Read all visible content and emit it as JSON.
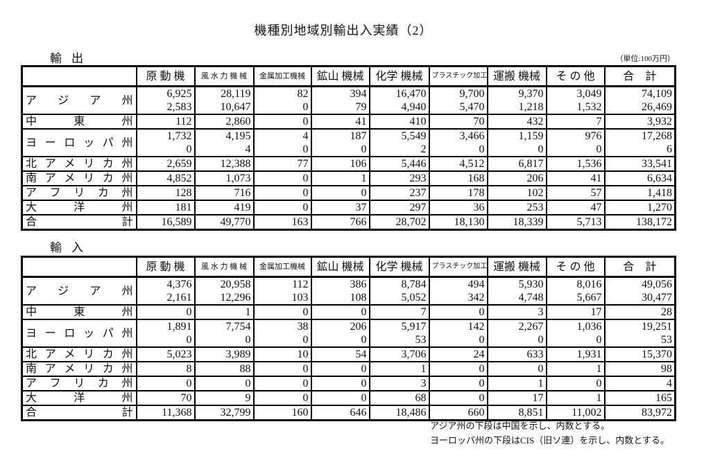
{
  "title": "機種別地域別輸出入実績（2）",
  "unit": "（単位:100万円）",
  "columns": [
    "原 動 機",
    "風 水 力 機 械",
    "金属加工機械",
    "鉱山 機械",
    "化学 機械",
    "プラスチック加工機械",
    "運搬 機械",
    "そ の 他",
    "合　計"
  ],
  "export": {
    "label": "輸出",
    "rows": [
      {
        "region": "ア ジ ア 州",
        "values": [
          "6,925",
          "28,119",
          "82",
          "394",
          "16,470",
          "9,700",
          "9,370",
          "3,049",
          "74,109"
        ],
        "sub": [
          "2,583",
          "10,647",
          "0",
          "79",
          "4,940",
          "5,470",
          "1,218",
          "1,532",
          "26,469"
        ]
      },
      {
        "region": "中 東 州",
        "values": [
          "112",
          "2,860",
          "0",
          "41",
          "410",
          "70",
          "432",
          "7",
          "3,932"
        ]
      },
      {
        "region": "ヨ ー ロ ッ パ 州",
        "values": [
          "1,732",
          "4,195",
          "4",
          "187",
          "5,549",
          "3,466",
          "1,159",
          "976",
          "17,268"
        ],
        "sub": [
          "0",
          "4",
          "0",
          "0",
          "2",
          "0",
          "0",
          "0",
          "6"
        ]
      },
      {
        "region": "北 ア メ リ カ 州",
        "values": [
          "2,659",
          "12,388",
          "77",
          "106",
          "5,446",
          "4,512",
          "6,817",
          "1,536",
          "33,541"
        ]
      },
      {
        "region": "南 ア メ リ カ 州",
        "values": [
          "4,852",
          "1,073",
          "0",
          "1",
          "293",
          "168",
          "206",
          "41",
          "6,634"
        ]
      },
      {
        "region": "ア フ リ カ 州",
        "values": [
          "128",
          "716",
          "0",
          "0",
          "237",
          "178",
          "102",
          "57",
          "1,418"
        ]
      },
      {
        "region": "大 洋 州",
        "values": [
          "181",
          "419",
          "0",
          "37",
          "297",
          "36",
          "253",
          "47",
          "1,270"
        ]
      },
      {
        "region": "合 計",
        "values": [
          "16,589",
          "49,770",
          "163",
          "766",
          "28,702",
          "18,130",
          "18,339",
          "5,713",
          "138,172"
        ]
      }
    ]
  },
  "import": {
    "label": "輸入",
    "rows": [
      {
        "region": "ア ジ ア 州",
        "values": [
          "4,376",
          "20,958",
          "112",
          "386",
          "8,784",
          "494",
          "5,930",
          "8,016",
          "49,056"
        ],
        "sub": [
          "2,161",
          "12,296",
          "103",
          "108",
          "5,052",
          "342",
          "4,748",
          "5,667",
          "30,477"
        ]
      },
      {
        "region": "中 東 州",
        "values": [
          "0",
          "1",
          "0",
          "0",
          "7",
          "0",
          "3",
          "17",
          "28"
        ]
      },
      {
        "region": "ヨ ー ロ ッ パ 州",
        "values": [
          "1,891",
          "7,754",
          "38",
          "206",
          "5,917",
          "142",
          "2,267",
          "1,036",
          "19,251"
        ],
        "sub": [
          "0",
          "0",
          "0",
          "0",
          "53",
          "0",
          "0",
          "0",
          "53"
        ]
      },
      {
        "region": "北 ア メ リ カ 州",
        "values": [
          "5,023",
          "3,989",
          "10",
          "54",
          "3,706",
          "24",
          "633",
          "1,931",
          "15,370"
        ]
      },
      {
        "region": "南 ア メ リ カ 州",
        "values": [
          "8",
          "88",
          "0",
          "0",
          "1",
          "0",
          "0",
          "1",
          "98"
        ]
      },
      {
        "region": "ア フ リ カ 州",
        "values": [
          "0",
          "0",
          "0",
          "0",
          "3",
          "0",
          "1",
          "0",
          "4"
        ]
      },
      {
        "region": "大 洋 州",
        "values": [
          "70",
          "9",
          "0",
          "0",
          "68",
          "0",
          "17",
          "1",
          "165"
        ]
      },
      {
        "region": "合 計",
        "values": [
          "11,368",
          "32,799",
          "160",
          "646",
          "18,486",
          "660",
          "8,851",
          "11,002",
          "83,972"
        ]
      }
    ]
  },
  "notes": [
    "アジア州の下段は中国を示し、内数とする。",
    "ヨーロッパ州の下段はCIS（旧ソ連）を示し、内数とする。"
  ]
}
